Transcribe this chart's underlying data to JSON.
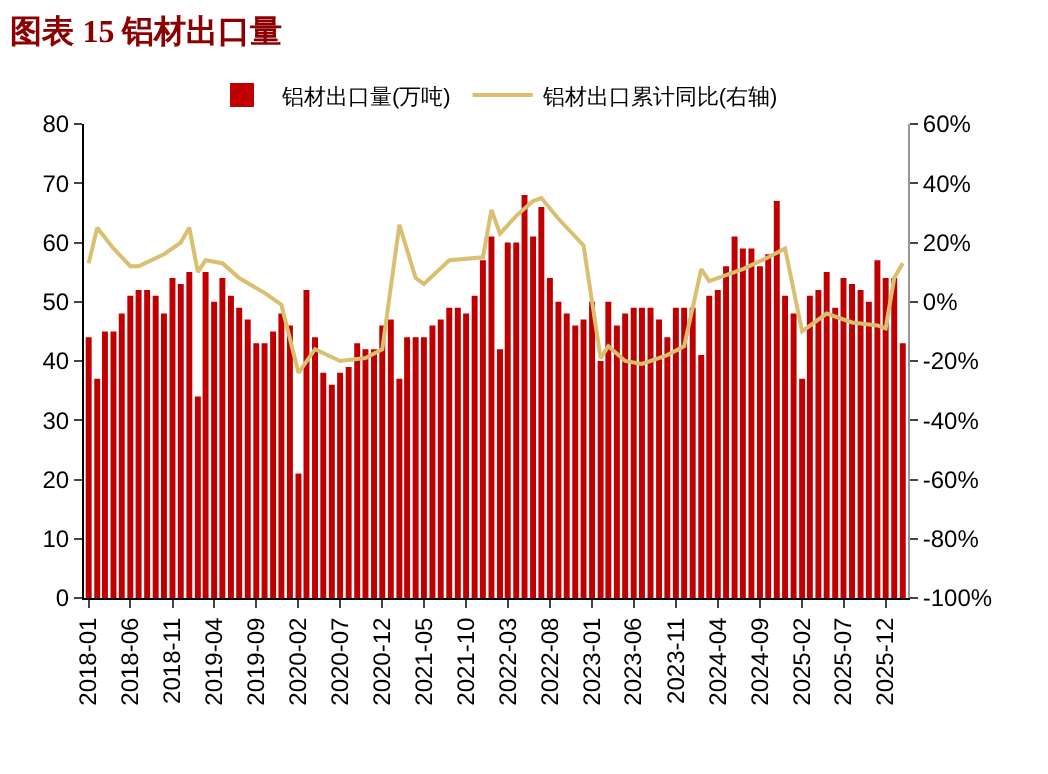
{
  "chart_data": {
    "type": "bar",
    "title": "图表 15 铝材出口量",
    "x": [
      "2018-01",
      "2018-02",
      "2018-03",
      "2018-04",
      "2018-05",
      "2018-06",
      "2018-07",
      "2018-08",
      "2018-09",
      "2018-10",
      "2018-11",
      "2018-12",
      "2019-01",
      "2019-02",
      "2019-03",
      "2019-04",
      "2019-05",
      "2019-06",
      "2019-07",
      "2019-08",
      "2019-09",
      "2019-10",
      "2019-11",
      "2019-12",
      "2020-01",
      "2020-02",
      "2020-03",
      "2020-04",
      "2020-05",
      "2020-06",
      "2020-07",
      "2020-08",
      "2020-09",
      "2020-10",
      "2020-11",
      "2020-12",
      "2021-01",
      "2021-02",
      "2021-03",
      "2021-04",
      "2021-05",
      "2021-06",
      "2021-07",
      "2021-08",
      "2021-09",
      "2021-10",
      "2021-11",
      "2021-12",
      "2022-01",
      "2022-02",
      "2022-03",
      "2022-04",
      "2022-05",
      "2022-06",
      "2022-07",
      "2022-08",
      "2022-09",
      "2022-10",
      "2022-11",
      "2022-12",
      "2023-01",
      "2023-02",
      "2023-03",
      "2023-04",
      "2023-05",
      "2023-06",
      "2023-07",
      "2023-08",
      "2023-09",
      "2023-10",
      "2023-11",
      "2023-12",
      "2024-01",
      "2024-02",
      "2024-03",
      "2024-04",
      "2024-05",
      "2024-06",
      "2024-07",
      "2024-08",
      "2024-09",
      "2024-10",
      "2024-11",
      "2024-12",
      "2025-01",
      "2025-02",
      "2025-03",
      "2025-04",
      "2025-05",
      "2025-06",
      "2025-07",
      "2025-08",
      "2025-09",
      "2025-10",
      "2025-11",
      "2025-12",
      "2026-01",
      "2026-02"
    ],
    "series": [
      {
        "name": "铝材出口量(万吨)",
        "color": "#c00000",
        "values": [
          44,
          37,
          45,
          45,
          48,
          51,
          52,
          52,
          51,
          48,
          54,
          53,
          55,
          34,
          55,
          50,
          54,
          51,
          49,
          47,
          43,
          43,
          45,
          48,
          46,
          21,
          52,
          44,
          38,
          36,
          38,
          39,
          43,
          42,
          42,
          46,
          47,
          37,
          44,
          44,
          44,
          46,
          47,
          49,
          49,
          48,
          51,
          57,
          61,
          42,
          60,
          60,
          68,
          61,
          66,
          54,
          50,
          48,
          46,
          47,
          50,
          40,
          50,
          46,
          48,
          49,
          49,
          49,
          47,
          44,
          49,
          49,
          49,
          41,
          51,
          52,
          56,
          61,
          59,
          59,
          56,
          58,
          67,
          51,
          48,
          37,
          51,
          52,
          55,
          49,
          54,
          53,
          52,
          50,
          57,
          54,
          54,
          43
        ]
      },
      {
        "name": "铝材出口累计同比(右轴)",
        "type": "line",
        "axis": "y2",
        "color": "#d9bf6f",
        "x": [
          "2018-01",
          "2018-02",
          "2018-04",
          "2018-06",
          "2018-07",
          "2018-10",
          "2018-12",
          "2019-01",
          "2019-02",
          "2019-03",
          "2019-05",
          "2019-07",
          "2019-10",
          "2019-12",
          "2020-02",
          "2020-04",
          "2020-07",
          "2020-10",
          "2020-12",
          "2021-02",
          "2021-04",
          "2021-05",
          "2021-08",
          "2021-12",
          "2022-01",
          "2022-02",
          "2022-04",
          "2022-06",
          "2022-07",
          "2022-09",
          "2022-12",
          "2023-02",
          "2023-03",
          "2023-05",
          "2023-07",
          "2023-10",
          "2023-12",
          "2024-02",
          "2024-03",
          "2024-07",
          "2024-10",
          "2024-12",
          "2025-02",
          "2025-05",
          "2025-08",
          "2025-11",
          "2025-12",
          "2026-01",
          "2026-02"
        ],
        "values": [
          13,
          25,
          18,
          12,
          12,
          16,
          20,
          25,
          10,
          14,
          13,
          8,
          3,
          -1,
          -24,
          -16,
          -20,
          -19,
          -16,
          26,
          8,
          6,
          14,
          15,
          31,
          23,
          29,
          34,
          35,
          28,
          19,
          -19,
          -15,
          -20,
          -21,
          -18,
          -15,
          11,
          7,
          11,
          15,
          18,
          -10,
          -4,
          -7,
          -8,
          -9,
          8,
          13
        ]
      }
    ],
    "xlim": [
      "2017-12-15",
      "2026-02-20"
    ],
    "xticks": [
      "2018-01",
      "2018-06",
      "2018-11",
      "2019-04",
      "2019-09",
      "2020-02",
      "2020-07",
      "2020-12",
      "2021-05",
      "2021-10",
      "2022-03",
      "2022-08",
      "2023-01",
      "2023-06",
      "2023-11",
      "2024-04",
      "2024-09",
      "2025-02",
      "2025-07",
      "2025-12"
    ],
    "ylim": [
      0,
      80
    ],
    "yticks": [
      0,
      10,
      20,
      30,
      40,
      50,
      60,
      70,
      80
    ],
    "y2lim": [
      -100,
      60
    ],
    "y2ticks": [
      {
        "value": -100,
        "label": "-100%"
      },
      {
        "value": -80,
        "label": "-80%"
      },
      {
        "value": -60,
        "label": "-60%"
      },
      {
        "value": -40,
        "label": "-40%"
      },
      {
        "value": -20,
        "label": "-20%"
      },
      {
        "value": 0,
        "label": "0%"
      },
      {
        "value": 20,
        "label": "20%"
      },
      {
        "value": 40,
        "label": "40%"
      },
      {
        "value": 60,
        "label": "60%"
      }
    ],
    "grid": false,
    "legend": "top",
    "line_style": "solid",
    "marker": "none"
  }
}
